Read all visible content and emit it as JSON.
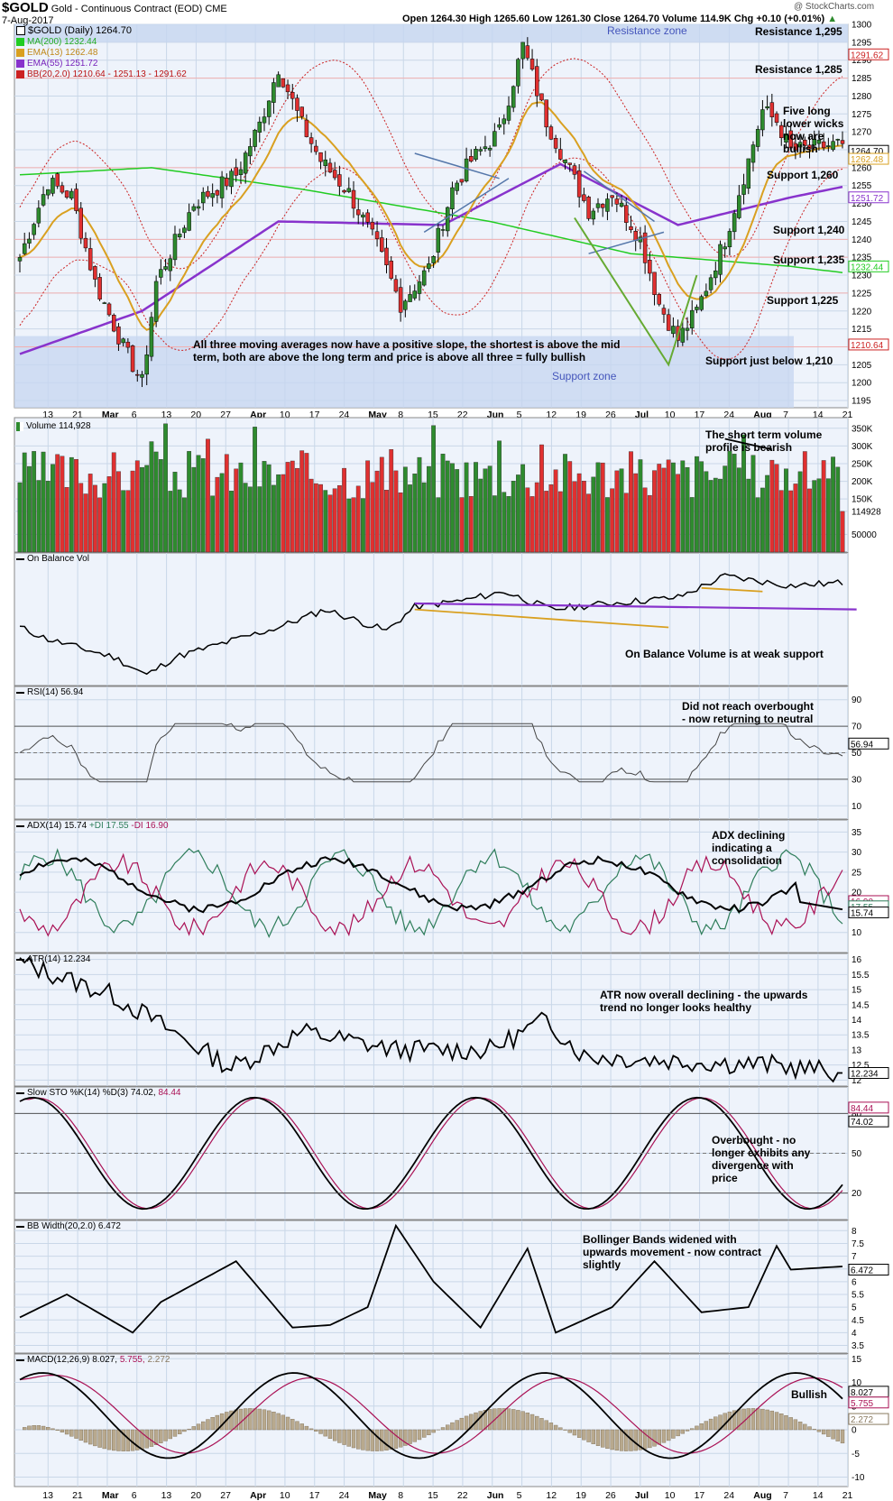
{
  "header": {
    "ticker": "$GOLD",
    "name": "Gold - Continuous Contract (EOD)",
    "exchange": "CME",
    "date": "7-Aug-2017",
    "watermark": "@ StockCharts.com",
    "ohlc": "Open 1264.30  High 1265.60  Low 1261.30  Close 1264.70  Volume 114.9K  Chg +0.10 (+0.01%)",
    "ohlc_arrow": "▲"
  },
  "colors": {
    "panel_bg": "#eef3fb",
    "grid": "#c9d7e8",
    "up": "#2e8b2e",
    "down": "#e03030",
    "ma200": "#22cc22",
    "ema13": "#d9a020",
    "ema55": "#8833cc",
    "bb": "#cc2222",
    "zone": "#c6d6f0",
    "zone_text": "#5566cc",
    "axis_text": "#000000"
  },
  "price_panel": {
    "legend_title": "$GOLD (Daily) 1264.70",
    "legend": [
      {
        "text": "MA(200) 1232.44",
        "color": "#22cc22",
        "icon": "line-swatch"
      },
      {
        "text": "EMA(13) 1262.48",
        "color": "#d9a020",
        "icon": "line-swatch"
      },
      {
        "text": "EMA(55) 1251.72",
        "color": "#8833cc",
        "icon": "line-swatch"
      },
      {
        "text": "BB(20,2.0) 1210.64 - 1251.13 - 1291.62",
        "color": "#cc2222",
        "icon": "line-swatch"
      }
    ],
    "resistance_zone_label": "Resistance zone",
    "support_zone_label": "Support zone",
    "level_labels": [
      {
        "text": "Resistance 1,295",
        "value": 1295
      },
      {
        "text": "Resistance 1,285",
        "value": 1285
      },
      {
        "text": "Support 1,260",
        "value": 1260
      },
      {
        "text": "Support 1,240",
        "value": 1240
      },
      {
        "text": "Support 1,235",
        "value": 1235
      },
      {
        "text": "Support 1,225",
        "value": 1225
      },
      {
        "text": "Support just below 1,210",
        "value": 1210
      }
    ],
    "wick_note": "Five long lower wicks now are bullish",
    "ma_note": "All three moving averages now have a positive slope, the shortest is above the mid term, both are above the long term and price is above all three = fully bullish",
    "price_labels": [
      {
        "text": "1291.62",
        "value": 1291.62,
        "color": "#cc2222"
      },
      {
        "text": "1264.70",
        "value": 1264.7,
        "color": "#000000"
      },
      {
        "text": "1262.48",
        "value": 1262.48,
        "color": "#d9a020"
      },
      {
        "text": "1251.72",
        "value": 1251.72,
        "color": "#8833cc"
      },
      {
        "text": "1232.44",
        "value": 1232.44,
        "color": "#22cc22"
      },
      {
        "text": "1210.64",
        "value": 1210.64,
        "color": "#cc2222"
      }
    ]
  },
  "volume_panel": {
    "legend": "Volume 114,928",
    "note": "The short term volume profile is bearish",
    "last_label": "114928"
  },
  "obv_panel": {
    "legend": "On Balance Vol",
    "note": "On Balance Volume is at weak support"
  },
  "rsi_panel": {
    "legend": "RSI(14) 56.94",
    "note": "Did not reach overbought - now returning to neutral",
    "last_label": "56.94"
  },
  "adx_panel": {
    "legend_adx": "ADX(14) 15.74",
    "legend_pdi": "+DI 17.55",
    "legend_mdi": "-DI 16.90",
    "note": "ADX declining indicating a consolidation",
    "last_labels": [
      "16.90",
      "17.55",
      "15.74"
    ]
  },
  "atr_panel": {
    "legend": "ATR(14) 12.234",
    "note": "ATR now overall declining - the upwards trend no longer looks healthy",
    "last_label": "12.234"
  },
  "sto_panel": {
    "legend_k": "Slow STO %K(14) %D(3) 74.02,",
    "legend_d": "84.44",
    "note": "Overbought - no longer exhibits any divergence with price",
    "last_labels": [
      "84.44",
      "74.02"
    ]
  },
  "bbw_panel": {
    "legend": "BB Width(20,2.0) 6.472",
    "note": "Bollinger Bands widened with upwards movement - now contract slightly",
    "last_label": "6.472"
  },
  "macd_panel": {
    "legend_a": "MACD(12,26,9) 8.027,",
    "legend_b": "5.755,",
    "legend_c": "2.272",
    "note": "Bullish",
    "last_labels": [
      "8.027",
      "5.755",
      "2.272"
    ]
  },
  "chart_data": [
    {
      "type": "candlestick",
      "title": "$GOLD (Daily)",
      "x_labels": [
        "13",
        "21",
        "Mar",
        "6",
        "13",
        "20",
        "27",
        "Apr",
        "10",
        "17",
        "24",
        "May",
        "8",
        "15",
        "22",
        "Jun",
        "5",
        "12",
        "19",
        "26",
        "Jul",
        "10",
        "17",
        "24",
        "Aug",
        "7",
        "14",
        "21"
      ],
      "ylim": [
        1193,
        1300
      ],
      "yticks": [
        1195,
        1200,
        1205,
        1210,
        1215,
        1220,
        1225,
        1230,
        1235,
        1240,
        1245,
        1250,
        1255,
        1260,
        1265,
        1270,
        1275,
        1280,
        1285,
        1290,
        1295,
        1300
      ],
      "grid": true,
      "close_key_points": [
        {
          "x": 0,
          "y": 1235
        },
        {
          "x": 6,
          "y": 1256
        },
        {
          "x": 11,
          "y": 1252
        },
        {
          "x": 16,
          "y": 1228
        },
        {
          "x": 22,
          "y": 1210
        },
        {
          "x": 26,
          "y": 1200
        },
        {
          "x": 29,
          "y": 1228
        },
        {
          "x": 37,
          "y": 1250
        },
        {
          "x": 46,
          "y": 1258
        },
        {
          "x": 51,
          "y": 1272
        },
        {
          "x": 55,
          "y": 1288
        },
        {
          "x": 60,
          "y": 1272
        },
        {
          "x": 64,
          "y": 1262
        },
        {
          "x": 70,
          "y": 1253
        },
        {
          "x": 76,
          "y": 1238
        },
        {
          "x": 81,
          "y": 1222
        },
        {
          "x": 87,
          "y": 1232
        },
        {
          "x": 92,
          "y": 1254
        },
        {
          "x": 96,
          "y": 1262
        },
        {
          "x": 102,
          "y": 1270
        },
        {
          "x": 107,
          "y": 1294
        },
        {
          "x": 112,
          "y": 1273
        },
        {
          "x": 116,
          "y": 1262
        },
        {
          "x": 121,
          "y": 1248
        },
        {
          "x": 126,
          "y": 1253
        },
        {
          "x": 132,
          "y": 1240
        },
        {
          "x": 136,
          "y": 1222
        },
        {
          "x": 140,
          "y": 1212
        },
        {
          "x": 144,
          "y": 1220
        },
        {
          "x": 150,
          "y": 1240
        },
        {
          "x": 155,
          "y": 1262
        },
        {
          "x": 158,
          "y": 1276
        },
        {
          "x": 161,
          "y": 1273
        },
        {
          "x": 164,
          "y": 1264.7
        }
      ],
      "ma200": [
        {
          "x": 0,
          "y": 1258
        },
        {
          "x": 28,
          "y": 1260
        },
        {
          "x": 60,
          "y": 1254
        },
        {
          "x": 100,
          "y": 1245
        },
        {
          "x": 130,
          "y": 1236
        },
        {
          "x": 164,
          "y": 1232.44
        }
      ],
      "ema55": [
        {
          "x": 0,
          "y": 1208
        },
        {
          "x": 26,
          "y": 1220
        },
        {
          "x": 55,
          "y": 1245
        },
        {
          "x": 90,
          "y": 1244
        },
        {
          "x": 115,
          "y": 1261
        },
        {
          "x": 140,
          "y": 1244
        },
        {
          "x": 164,
          "y": 1251.72
        }
      ],
      "resistance_zone": [
        1295,
        1300
      ],
      "support_zone": [
        1193,
        1213
      ]
    },
    {
      "type": "bar",
      "title": "Volume",
      "ylim": [
        0,
        380000
      ],
      "ytick_labels": [
        "350K",
        "300K",
        "250K",
        "200K",
        "150K",
        "114928",
        "50000"
      ],
      "last_value": 114928
    },
    {
      "type": "line",
      "title": "RSI(14)",
      "ylim": [
        0,
        100
      ],
      "yticks": [
        10,
        30,
        50,
        70,
        90
      ],
      "last_value": 56.94
    },
    {
      "type": "line",
      "title": "ADX(14)",
      "ylim": [
        5,
        38
      ],
      "yticks": [
        10,
        15,
        20,
        25,
        30,
        35
      ],
      "series_last": {
        "ADX": 15.74,
        "+DI": 17.55,
        "-DI": 16.9
      }
    },
    {
      "type": "line",
      "title": "ATR(14)",
      "ylim": [
        11.8,
        16.2
      ],
      "yticks": [
        12.0,
        12.5,
        13.0,
        13.5,
        14.0,
        14.5,
        15.0,
        15.5,
        16.0
      ],
      "last_value": 12.234
    },
    {
      "type": "line",
      "title": "Slow STO %K(14) %D(3)",
      "ylim": [
        0,
        100
      ],
      "yticks": [
        20,
        50,
        80
      ],
      "series_last": {
        "%K": 74.02,
        "%D": 84.44
      }
    },
    {
      "type": "line",
      "title": "BB Width(20,2.0)",
      "ylim": [
        3.2,
        8.4
      ],
      "yticks": [
        3.5,
        4.0,
        4.5,
        5.0,
        5.5,
        6.0,
        6.5,
        7.0,
        7.5,
        8.0
      ],
      "last_value": 6.472
    },
    {
      "type": "line",
      "title": "MACD(12,26,9)",
      "ylim": [
        -12,
        16
      ],
      "yticks": [
        -10,
        -5,
        0,
        5,
        10,
        15
      ],
      "series_last": {
        "MACD": 8.027,
        "Signal": 5.755,
        "Histogram": 2.272
      }
    }
  ]
}
